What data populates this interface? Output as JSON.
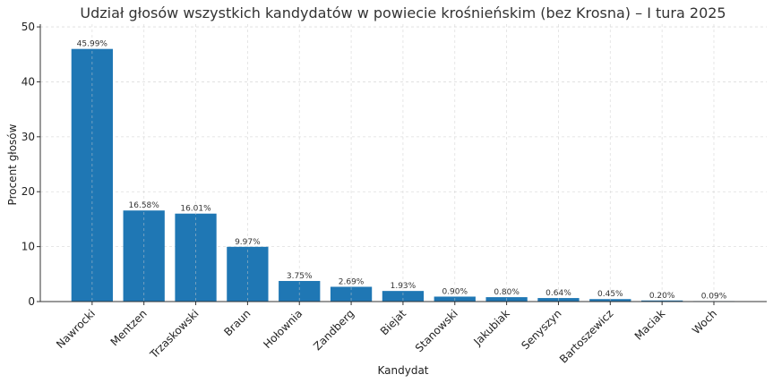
{
  "chart_data": {
    "type": "bar",
    "title": "Udział głosów wszystkich kandydatów w powiecie krośnieńskim (bez Krosna) – I tura 2025",
    "xlabel": "Kandydat",
    "ylabel": "Procent głosów",
    "categories": [
      "Nawrocki",
      "Mentzen",
      "Trzaskowski",
      "Braun",
      "Hołownia",
      "Zandberg",
      "Biejat",
      "Stanowski",
      "Jakubiak",
      "Senyszyn",
      "Bartoszewicz",
      "Maciak",
      "Woch"
    ],
    "values": [
      45.99,
      16.58,
      16.01,
      9.97,
      3.75,
      2.69,
      1.93,
      0.9,
      0.8,
      0.64,
      0.45,
      0.2,
      0.09
    ],
    "data_labels": [
      "45.99%",
      "16.58%",
      "16.01%",
      "9.97%",
      "3.75%",
      "2.69%",
      "1.93%",
      "0.90%",
      "0.80%",
      "0.64%",
      "0.45%",
      "0.20%",
      "0.09%"
    ],
    "ylim": [
      0,
      50.5
    ],
    "yticks": [
      0,
      10,
      20,
      30,
      40,
      50
    ],
    "grid": true,
    "bar_color": "#1f77b4"
  }
}
